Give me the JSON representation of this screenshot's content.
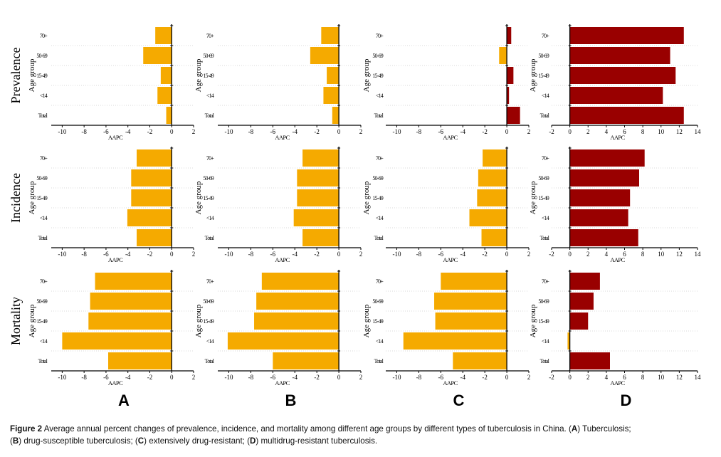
{
  "chart_data": {
    "type": "bar",
    "orientation": "horizontal",
    "categories": [
      "70+",
      "50-69",
      "15-49",
      "<14",
      "Total"
    ],
    "category_tick_labels": [
      "70+",
      "50-69",
      "15-49",
      "<14",
      "Total"
    ],
    "xlabel": "AAPC",
    "ylabel": "Age group",
    "grid": "dotted horizontal separators",
    "colors": {
      "negative": "#F5AA00",
      "positive": "#990000"
    },
    "row_labels": [
      "Prevalence",
      "Incidence",
      "Mortality"
    ],
    "column_labels": [
      "A",
      "B",
      "C",
      "D"
    ],
    "panels": [
      {
        "row": "Prevalence",
        "column": "A",
        "xlim": [
          -11,
          2
        ],
        "ticks": [
          -10,
          -8,
          -6,
          -4,
          -2,
          0,
          2
        ],
        "values": [
          -1.5,
          -2.6,
          -1.0,
          -1.3,
          -0.5
        ]
      },
      {
        "row": "Prevalence",
        "column": "B",
        "xlim": [
          -11,
          2
        ],
        "ticks": [
          -10,
          -8,
          -6,
          -4,
          -2,
          0,
          2
        ],
        "values": [
          -1.6,
          -2.6,
          -1.1,
          -1.4,
          -0.6
        ]
      },
      {
        "row": "Prevalence",
        "column": "C",
        "xlim": [
          -11,
          2
        ],
        "ticks": [
          -10,
          -8,
          -6,
          -4,
          -2,
          0,
          2
        ],
        "values": [
          0.4,
          -0.7,
          0.6,
          0.2,
          1.2
        ]
      },
      {
        "row": "Prevalence",
        "column": "D",
        "xlim": [
          -2,
          14
        ],
        "ticks": [
          -2,
          0,
          2,
          4,
          6,
          8,
          10,
          12,
          14
        ],
        "values": [
          12.5,
          11.0,
          11.6,
          10.2,
          12.5
        ]
      },
      {
        "row": "Incidence",
        "column": "A",
        "xlim": [
          -11,
          2
        ],
        "ticks": [
          -10,
          -8,
          -6,
          -4,
          -2,
          0,
          2
        ],
        "values": [
          -3.2,
          -3.7,
          -3.7,
          -4.05,
          -3.2
        ]
      },
      {
        "row": "Incidence",
        "column": "B",
        "xlim": [
          -11,
          2
        ],
        "ticks": [
          -10,
          -8,
          -6,
          -4,
          -2,
          0,
          2
        ],
        "values": [
          -3.3,
          -3.8,
          -3.8,
          -4.1,
          -3.3
        ]
      },
      {
        "row": "Incidence",
        "column": "C",
        "xlim": [
          -11,
          2
        ],
        "ticks": [
          -10,
          -8,
          -6,
          -4,
          -2,
          0,
          2
        ],
        "values": [
          -2.2,
          -2.6,
          -2.7,
          -3.4,
          -2.3
        ]
      },
      {
        "row": "Incidence",
        "column": "D",
        "xlim": [
          -2,
          14
        ],
        "ticks": [
          -2,
          0,
          2,
          4,
          6,
          8,
          10,
          12,
          14
        ],
        "values": [
          8.2,
          7.6,
          6.6,
          6.4,
          7.5
        ]
      },
      {
        "row": "Mortality",
        "column": "A",
        "xlim": [
          -11,
          2
        ],
        "ticks": [
          -10,
          -8,
          -6,
          -4,
          -2,
          0,
          2
        ],
        "values": [
          -7.0,
          -7.45,
          -7.6,
          -10.0,
          -5.8
        ]
      },
      {
        "row": "Mortality",
        "column": "B",
        "xlim": [
          -11,
          2
        ],
        "ticks": [
          -10,
          -8,
          -6,
          -4,
          -2,
          0,
          2
        ],
        "values": [
          -7.0,
          -7.5,
          -7.7,
          -10.1,
          -6.0
        ]
      },
      {
        "row": "Mortality",
        "column": "C",
        "xlim": [
          -11,
          2
        ],
        "ticks": [
          -10,
          -8,
          -6,
          -4,
          -2,
          0,
          2
        ],
        "values": [
          -6.0,
          -6.6,
          -6.5,
          -9.4,
          -4.9
        ]
      },
      {
        "row": "Mortality",
        "column": "D",
        "xlim": [
          -2,
          14
        ],
        "ticks": [
          -2,
          0,
          2,
          4,
          6,
          8,
          10,
          12,
          14
        ],
        "values": [
          3.3,
          2.6,
          2.0,
          -0.25,
          4.4
        ]
      }
    ]
  },
  "caption": {
    "label": "Figure 2",
    "text_1": " Average annual percent changes of prevalence, incidence, and mortality among different age groups by different types of tuberculosis in China. (",
    "a": "A",
    "text_2": ") Tuberculosis;",
    "text_3": "(",
    "b": "B",
    "text_4": ") drug-susceptible tuberculosis; (",
    "c": "C",
    "text_5": ") extensively drug-resistant; (",
    "d": "D",
    "text_6": ") multidrug-resistant tuberculosis."
  }
}
